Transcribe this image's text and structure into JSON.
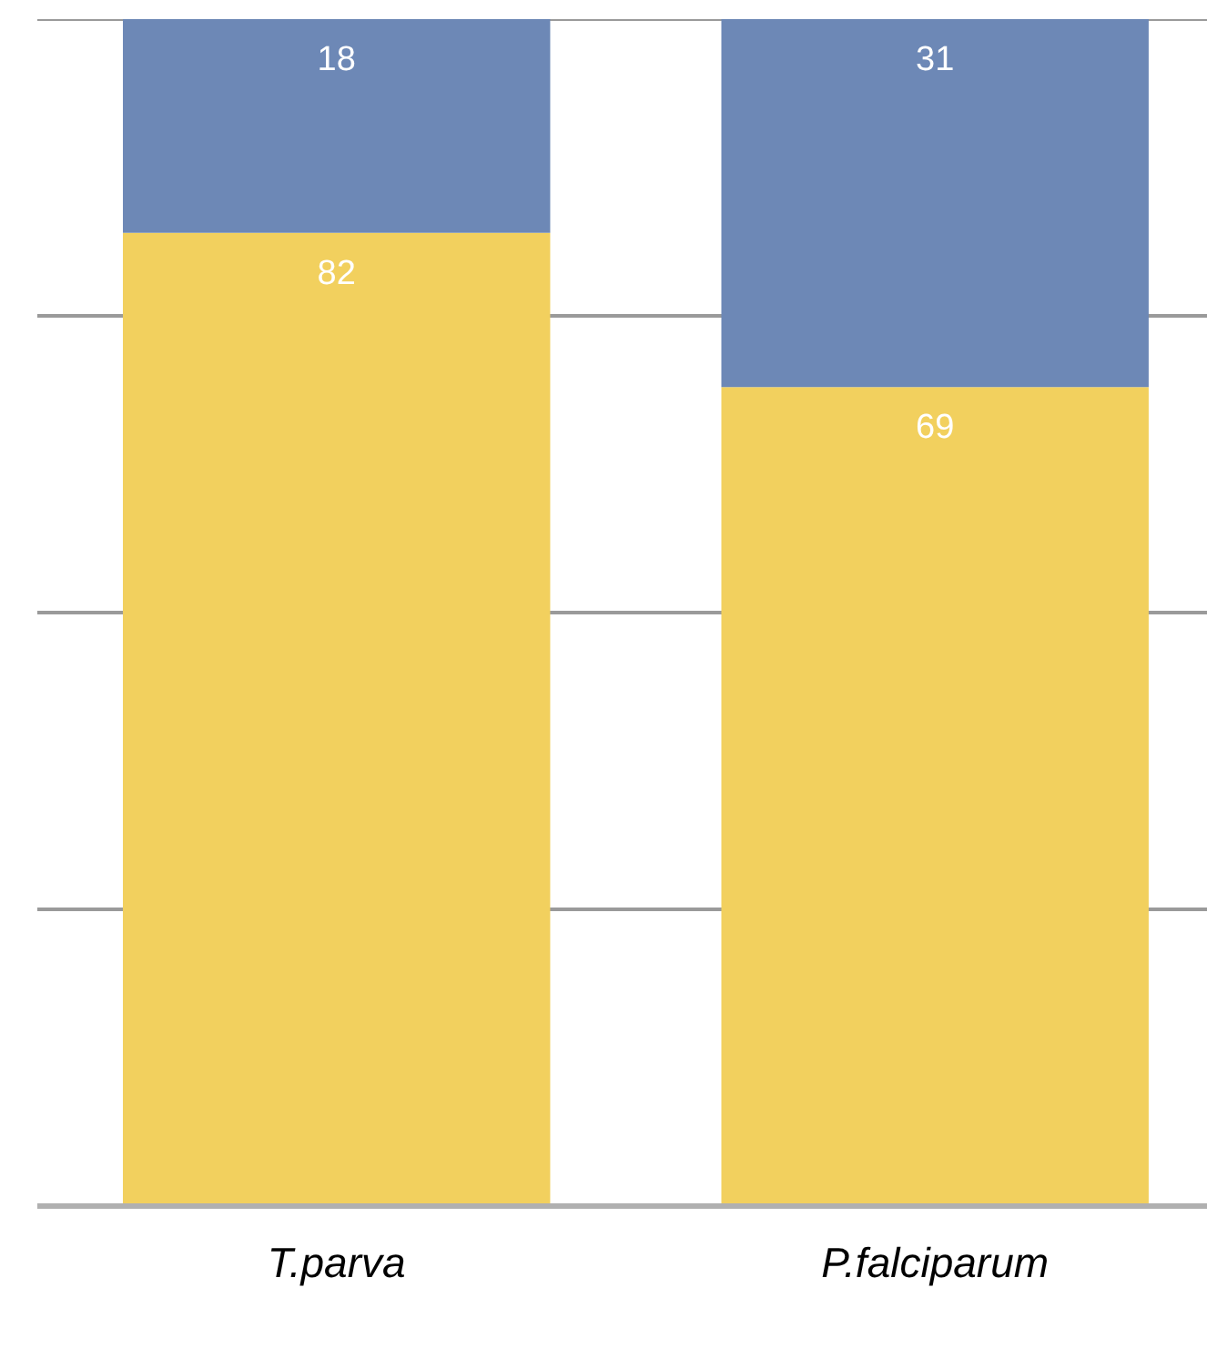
{
  "chart_data": {
    "type": "bar",
    "stacked": true,
    "categories": [
      "T.parva",
      "P.falciparum"
    ],
    "series": [
      {
        "color": "#f2d05e",
        "values": [
          82,
          69
        ]
      },
      {
        "color": "#6d88b6",
        "values": [
          18,
          31
        ]
      }
    ],
    "ylim": [
      0,
      100
    ],
    "yticks": [
      {
        "value": 0,
        "label": null
      },
      {
        "value": 25,
        "label": null
      },
      {
        "value": 50,
        "label": null
      },
      {
        "value": 75,
        "label": null
      },
      {
        "value": 100,
        "label": null
      }
    ],
    "grid": "y",
    "tick_labels": "x",
    "data_labels": true
  }
}
